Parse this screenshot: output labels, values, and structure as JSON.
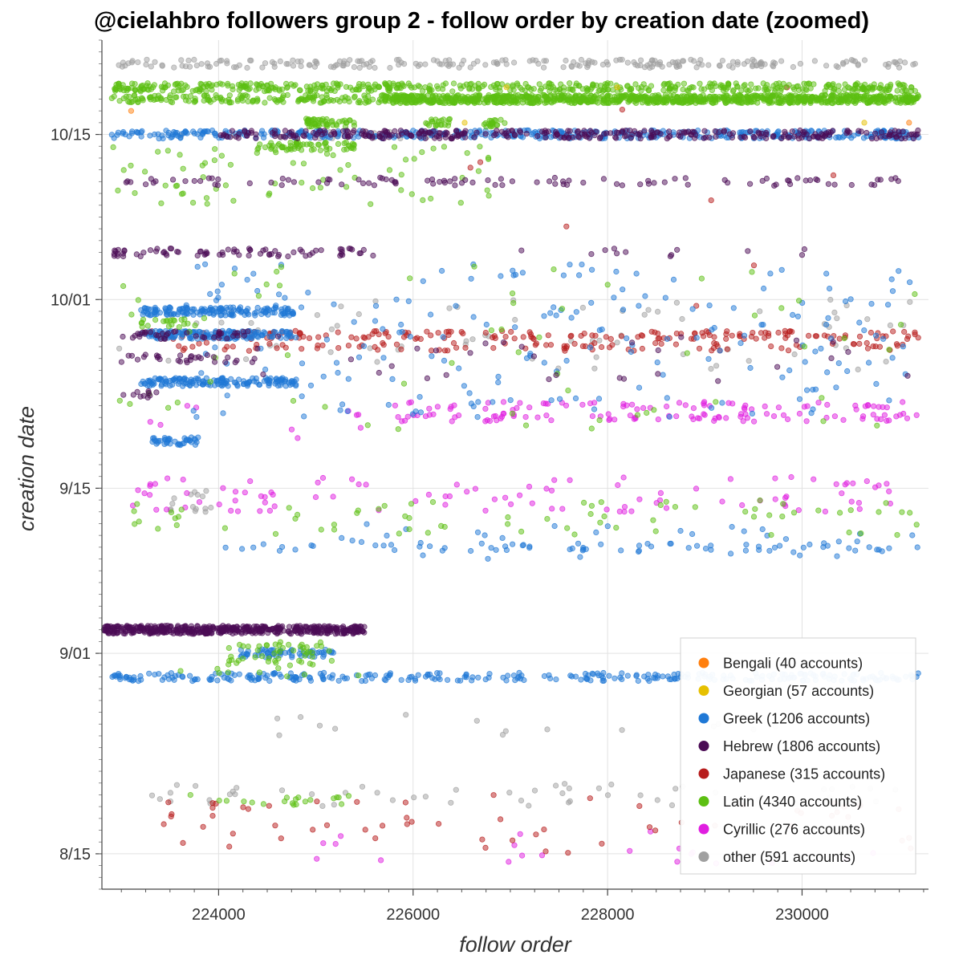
{
  "chart_data": {
    "type": "scatter",
    "title": "@cielahbro followers group 2 - follow order by creation date (zoomed)",
    "xlabel": "follow order",
    "ylabel": "creation date",
    "xlim": [
      222800,
      231300
    ],
    "ylim": [
      "2017-08-12",
      "2017-10-23"
    ],
    "x_ticks": [
      {
        "value": 224000,
        "label": "224000"
      },
      {
        "value": 226000,
        "label": "226000"
      },
      {
        "value": 228000,
        "label": "228000"
      },
      {
        "value": 230000,
        "label": "230000"
      }
    ],
    "y_ticks": [
      {
        "value": "2017-08-15",
        "label": "8/15"
      },
      {
        "value": "2017-09-01",
        "label": "9/01"
      },
      {
        "value": "2017-09-15",
        "label": "9/15"
      },
      {
        "value": "2017-10-01",
        "label": "10/01"
      },
      {
        "value": "2017-10-15",
        "label": "10/15"
      }
    ],
    "grid": true,
    "legend_position": "bottom-right",
    "series": [
      {
        "name": "Bengali (40 accounts)",
        "color": "#ff7f0e",
        "bands": [],
        "points": [
          [
            "2017-10-16",
            222810
          ],
          [
            "2017-10-16",
            231100
          ],
          [
            "2017-10-17",
            223100
          ]
        ]
      },
      {
        "name": "Georgian (57 accounts)",
        "color": "#e6c000",
        "bands": [],
        "points": [
          [
            "2017-10-16",
            226530
          ],
          [
            "2017-10-19",
            226960
          ],
          [
            "2017-10-19",
            228100
          ],
          [
            "2017-10-16",
            230640
          ]
        ]
      },
      {
        "name": "Greek (1206 accounts)",
        "color": "#1f78d6",
        "bands": [
          [
            "2017-10-15",
            222900,
            231200,
            420
          ],
          [
            "2017-09-30",
            223200,
            224800,
            150
          ],
          [
            "2017-09-28",
            223200,
            224800,
            150
          ],
          [
            "2017-09-24",
            223200,
            224800,
            150
          ],
          [
            "2017-09-19",
            223300,
            223800,
            40
          ],
          [
            "2017-08-30",
            222900,
            231200,
            300
          ],
          [
            "2017-09-01",
            224200,
            225200,
            60
          ],
          [
            "2017-09-10",
            224000,
            231200,
            60
          ]
        ],
        "scatter": [
          [
            "2017-09-21",
            "2017-10-04",
            223600,
            231200,
            200
          ],
          [
            "2017-09-09",
            "2017-09-12",
            225200,
            231200,
            40
          ]
        ],
        "points": []
      },
      {
        "name": "Hebrew (1806 accounts)",
        "color": "#4b0c55",
        "bands": [
          [
            "2017-09-03",
            222800,
            225500,
            500
          ],
          [
            "2017-10-15",
            224000,
            231200,
            330
          ],
          [
            "2017-10-11",
            222900,
            231200,
            100
          ],
          [
            "2017-10-05",
            222900,
            225600,
            75
          ],
          [
            "2017-10-05",
            227000,
            231200,
            12
          ],
          [
            "2017-09-28",
            223000,
            224400,
            40
          ],
          [
            "2017-09-26",
            223000,
            224400,
            30
          ],
          [
            "2017-09-23",
            223000,
            223400,
            10
          ]
        ],
        "scatter": [
          [
            "2017-09-24",
            "2017-09-28",
            224400,
            231200,
            30
          ]
        ],
        "points": []
      },
      {
        "name": "Japanese (315 accounts)",
        "color": "#b71c1c",
        "bands": [
          [
            "2017-09-28",
            223500,
            231200,
            150
          ],
          [
            "2017-09-27",
            223500,
            231200,
            90
          ]
        ],
        "scatter": [
          [
            "2017-08-15",
            "2017-08-20",
            223300,
            231200,
            60
          ],
          [
            "2017-09-25",
            "2017-10-20",
            223300,
            231200,
            10
          ]
        ],
        "points": []
      },
      {
        "name": "Latin (4340 accounts)",
        "color": "#5cbf12",
        "bands": [
          [
            "2017-10-19",
            222900,
            231200,
            500
          ],
          [
            "2017-10-18",
            222900,
            231200,
            450
          ],
          [
            "2017-10-18",
            225700,
            231200,
            700
          ],
          [
            "2017-10-16",
            224900,
            225400,
            50
          ],
          [
            "2017-10-14",
            224400,
            225400,
            60
          ],
          [
            "2017-10-16",
            226100,
            226400,
            20
          ],
          [
            "2017-10-16",
            226700,
            226950,
            20
          ],
          [
            "2017-09-29",
            223200,
            223800,
            20
          ]
        ],
        "scatter": [
          [
            "2017-10-09",
            "2017-10-14",
            222900,
            226900,
            70
          ],
          [
            "2017-09-11",
            "2017-09-14",
            223000,
            231200,
            70
          ],
          [
            "2017-08-31",
            "2017-09-02",
            224100,
            225200,
            50
          ],
          [
            "2017-09-20",
            "2017-10-04",
            222900,
            231200,
            60
          ],
          [
            "2017-08-19",
            "2017-08-20",
            223600,
            225500,
            20
          ],
          [
            "2017-08-30",
            "2017-08-31",
            223200,
            225600,
            10
          ]
        ],
        "points": []
      },
      {
        "name": "Cyrillic (276 accounts)",
        "color": "#e01ee0",
        "bands": [
          [
            "2017-09-21",
            225800,
            231200,
            80
          ],
          [
            "2017-09-22",
            225800,
            231200,
            60
          ]
        ],
        "scatter": [
          [
            "2017-09-13",
            "2017-09-16",
            223000,
            231200,
            100
          ],
          [
            "2017-09-19",
            "2017-09-22",
            223000,
            225500,
            10
          ],
          [
            "2017-08-14",
            "2017-08-17",
            224500,
            230800,
            20
          ]
        ],
        "points": []
      },
      {
        "name": "other (591 accounts)",
        "color": "#a0a0a0",
        "bands": [
          [
            "2017-10-21",
            222900,
            231200,
            230
          ],
          [
            "2017-10-15",
            223600,
            226300,
            20
          ]
        ],
        "scatter": [
          [
            "2017-09-25",
            "2017-10-01",
            222900,
            231200,
            70
          ],
          [
            "2017-08-19",
            "2017-08-21",
            223300,
            231200,
            60
          ],
          [
            "2017-09-13",
            "2017-09-15",
            223500,
            224000,
            15
          ],
          [
            "2017-08-25",
            "2017-08-27",
            224200,
            230000,
            15
          ]
        ],
        "points": []
      }
    ]
  }
}
